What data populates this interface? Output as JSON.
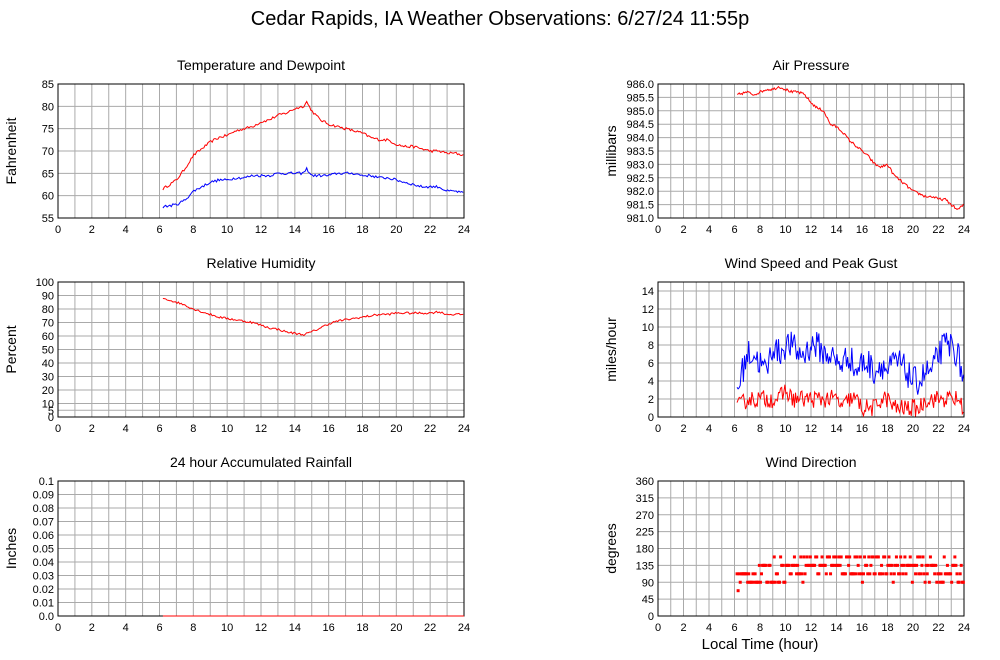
{
  "page": {
    "title": "Cedar Rapids, IA Weather Observations: 6/27/24 11:55p",
    "xlabel": "Local Time (hour)"
  },
  "colors": {
    "temperature": "#ff0000",
    "dewpoint": "#0000ff",
    "grid": "#aaaaaa",
    "frame": "#000000"
  },
  "chart_data": [
    {
      "id": "temp",
      "type": "line",
      "title": "Temperature and Dewpoint",
      "ylabel": "Fahrenheit",
      "xlim": [
        0,
        24
      ],
      "ylim": [
        55,
        85
      ],
      "xticks": [
        0,
        2,
        4,
        6,
        8,
        10,
        12,
        14,
        16,
        18,
        20,
        22,
        24
      ],
      "yticks": [
        55,
        60,
        65,
        70,
        75,
        80,
        85
      ],
      "grid": true,
      "series": [
        {
          "color": "#ff0000",
          "noise": 0.3,
          "x": [
            6.2,
            7.0,
            7.5,
            8.0,
            8.5,
            9.0,
            9.5,
            10.0,
            10.5,
            11.0,
            11.5,
            12.0,
            12.5,
            13.0,
            13.5,
            14.0,
            14.5,
            14.7,
            15.0,
            15.5,
            16.0,
            16.5,
            17.0,
            17.5,
            18.0,
            18.5,
            19.0,
            19.5,
            20.0,
            20.5,
            21.0,
            21.5,
            22.0,
            22.5,
            23.0,
            23.5,
            24.0
          ],
          "y": [
            61.5,
            63.5,
            66,
            69,
            70.5,
            72,
            73,
            73.5,
            74.5,
            75,
            75.5,
            76.5,
            77,
            78,
            78.5,
            79.5,
            80,
            81,
            79,
            77,
            76,
            75.5,
            75,
            74.5,
            74,
            73,
            72.5,
            72.5,
            71.5,
            71,
            71,
            70.5,
            70,
            70,
            69.5,
            69.5,
            69
          ]
        },
        {
          "color": "#0000ff",
          "noise": 0.3,
          "x": [
            6.2,
            7.0,
            7.5,
            8.0,
            8.5,
            9.0,
            9.5,
            10.0,
            10.5,
            11.0,
            11.5,
            12.0,
            12.5,
            13.0,
            13.5,
            14.0,
            14.5,
            14.7,
            15.0,
            15.5,
            16.0,
            16.5,
            17.0,
            17.5,
            18.0,
            18.5,
            19.0,
            19.5,
            20.0,
            20.5,
            21.0,
            21.5,
            22.0,
            22.5,
            23.0,
            23.5,
            24.0
          ],
          "y": [
            57.5,
            58,
            59,
            61,
            62,
            63,
            63.5,
            63.5,
            64,
            64,
            64.5,
            64.5,
            64.5,
            65,
            65,
            65,
            65,
            66,
            64.5,
            64.5,
            64.5,
            65,
            65,
            65,
            64.5,
            64.5,
            64,
            64,
            63.5,
            63,
            62.5,
            62,
            62,
            62,
            61,
            61,
            60.5
          ]
        }
      ]
    },
    {
      "id": "pressure",
      "type": "line",
      "title": "Air Pressure",
      "ylabel": "millibars",
      "xlim": [
        0,
        24
      ],
      "ylim": [
        981,
        986
      ],
      "xticks": [
        0,
        2,
        4,
        6,
        8,
        10,
        12,
        14,
        16,
        18,
        20,
        22,
        24
      ],
      "yticks": [
        981,
        981.5,
        982,
        982.5,
        983,
        983.5,
        984,
        984.5,
        985,
        985.5,
        986
      ],
      "yticklabels": [
        "981.0",
        "981.5",
        "982.0",
        "982.5",
        "983.0",
        "983.5",
        "984.0",
        "984.5",
        "985.0",
        "985.5",
        "986.0"
      ],
      "grid": true,
      "series": [
        {
          "color": "#ff0000",
          "noise": 0.05,
          "x": [
            6.2,
            7.0,
            7.5,
            8.0,
            8.5,
            9.0,
            9.5,
            10.0,
            10.5,
            11.0,
            11.5,
            12.0,
            12.5,
            13.0,
            13.5,
            14.0,
            14.5,
            15.0,
            15.5,
            16.0,
            16.5,
            17.0,
            17.5,
            18.0,
            18.5,
            19.0,
            19.5,
            20.0,
            20.5,
            21.0,
            21.5,
            22.0,
            22.5,
            23.0,
            23.5,
            24.0
          ],
          "y": [
            985.6,
            985.7,
            985.6,
            985.7,
            985.8,
            985.8,
            985.9,
            985.8,
            985.7,
            985.7,
            985.6,
            985.3,
            985.1,
            985.0,
            984.5,
            984.4,
            984.2,
            983.9,
            983.7,
            983.5,
            983.3,
            983.0,
            982.9,
            983.0,
            982.6,
            982.4,
            982.2,
            982.0,
            981.9,
            981.8,
            981.8,
            981.7,
            981.7,
            981.5,
            981.3,
            981.5
          ]
        }
      ]
    },
    {
      "id": "humidity",
      "type": "line",
      "title": "Relative Humidity",
      "ylabel": "Percent",
      "xlim": [
        0,
        24
      ],
      "ylim": [
        0,
        100
      ],
      "xticks": [
        0,
        2,
        4,
        6,
        8,
        10,
        12,
        14,
        16,
        18,
        20,
        22,
        24
      ],
      "yticks": [
        0,
        5,
        10,
        20,
        30,
        40,
        50,
        60,
        70,
        80,
        90,
        100
      ],
      "grid": true,
      "series": [
        {
          "color": "#ff0000",
          "noise": 0.8,
          "x": [
            6.2,
            7.0,
            7.5,
            8.0,
            8.5,
            9.0,
            9.5,
            10.0,
            10.5,
            11.0,
            11.5,
            12.0,
            12.5,
            13.0,
            13.5,
            14.0,
            14.5,
            15.0,
            15.5,
            16.0,
            16.5,
            17.0,
            17.5,
            18.0,
            18.5,
            19.0,
            19.5,
            20.0,
            20.5,
            21.0,
            21.5,
            22.0,
            22.5,
            23.0,
            23.5,
            24.0
          ],
          "y": [
            88,
            85,
            83,
            80,
            78,
            76,
            74,
            73,
            72,
            71,
            70,
            68,
            66,
            65,
            63,
            62,
            61,
            63,
            66,
            69,
            71,
            72,
            73,
            74,
            75,
            76,
            76,
            77,
            77,
            77,
            77,
            77,
            78,
            76,
            76,
            76
          ]
        }
      ]
    },
    {
      "id": "wind",
      "type": "line",
      "title": "Wind Speed and Peak Gust",
      "ylabel": "miles/hour",
      "xlim": [
        0,
        24
      ],
      "ylim": [
        0,
        15
      ],
      "xticks": [
        0,
        2,
        4,
        6,
        8,
        10,
        12,
        14,
        16,
        18,
        20,
        22,
        24
      ],
      "yticks": [
        0,
        2,
        4,
        6,
        8,
        10,
        12,
        14
      ],
      "grid": true,
      "series": [
        {
          "color": "#0000ff",
          "noise": 1.6,
          "x": [
            6.2,
            7.0,
            7.5,
            8.0,
            8.5,
            9.0,
            9.5,
            10.0,
            10.5,
            11.0,
            11.5,
            12.0,
            12.5,
            13.0,
            13.5,
            14.0,
            14.5,
            15.0,
            15.5,
            16.0,
            16.5,
            17.0,
            17.5,
            18.0,
            18.5,
            19.0,
            19.5,
            20.0,
            20.5,
            21.0,
            21.5,
            22.0,
            22.5,
            23.0,
            23.5,
            24.0
          ],
          "y": [
            3,
            7,
            7,
            6,
            5,
            8,
            7,
            8,
            8,
            7,
            7,
            8,
            8,
            7,
            7,
            6,
            6,
            7,
            5,
            6,
            6,
            5,
            6,
            5,
            6,
            6,
            5,
            4,
            4,
            5,
            5,
            7,
            8,
            8,
            7,
            4
          ]
        },
        {
          "color": "#ff0000",
          "noise": 1.0,
          "x": [
            6.2,
            7.0,
            7.5,
            8.0,
            8.5,
            9.0,
            9.5,
            10.0,
            10.5,
            11.0,
            11.5,
            12.0,
            12.5,
            13.0,
            13.5,
            14.0,
            14.5,
            15.0,
            15.5,
            16.0,
            16.5,
            17.0,
            17.5,
            18.0,
            18.5,
            19.0,
            19.5,
            20.0,
            20.5,
            21.0,
            21.5,
            22.0,
            22.5,
            23.0,
            23.5,
            24.0
          ],
          "y": [
            1,
            2,
            2,
            2,
            2,
            2,
            2,
            3,
            2,
            2,
            2,
            2,
            2,
            2,
            2,
            2,
            1,
            2,
            2,
            1,
            1,
            1,
            2,
            2,
            1,
            1,
            1,
            1,
            1,
            2,
            2,
            2,
            2,
            2,
            2,
            1
          ]
        }
      ]
    },
    {
      "id": "rain",
      "type": "line",
      "title": "24 hour Accumulated Rainfall",
      "ylabel": "Inches",
      "xlim": [
        0,
        24
      ],
      "ylim": [
        0,
        0.1
      ],
      "xticks": [
        0,
        2,
        4,
        6,
        8,
        10,
        12,
        14,
        16,
        18,
        20,
        22,
        24
      ],
      "yticks": [
        0,
        0.01,
        0.02,
        0.03,
        0.04,
        0.05,
        0.06,
        0.07,
        0.08,
        0.09,
        0.1
      ],
      "yticklabels": [
        "0.0",
        "0.01",
        "0.02",
        "0.03",
        "0.04",
        "0.05",
        "0.06",
        "0.07",
        "0.08",
        "0.09",
        "0.1"
      ],
      "grid": true,
      "series": [
        {
          "color": "#ff0000",
          "noise": 0,
          "x": [
            6.2,
            24.0
          ],
          "y": [
            0,
            0
          ]
        }
      ]
    },
    {
      "id": "direction",
      "type": "scatter",
      "title": "Wind Direction",
      "ylabel": "degrees",
      "xlim": [
        0,
        24
      ],
      "ylim": [
        0,
        360
      ],
      "xticks": [
        0,
        2,
        4,
        6,
        8,
        10,
        12,
        14,
        16,
        18,
        20,
        22,
        24
      ],
      "yticks": [
        0,
        45,
        90,
        135,
        180,
        225,
        270,
        315,
        360
      ],
      "grid": true,
      "series": [
        {
          "color": "#ff0000",
          "scatter": true,
          "spread": 32,
          "x": [
            6.2,
            7.0,
            7.5,
            8.0,
            8.5,
            9.0,
            9.5,
            10.0,
            10.5,
            11.0,
            11.5,
            12.0,
            12.5,
            13.0,
            13.5,
            14.0,
            14.5,
            15.0,
            15.5,
            16.0,
            16.5,
            17.0,
            17.5,
            18.0,
            18.5,
            19.0,
            19.5,
            20.0,
            20.5,
            21.0,
            21.5,
            22.0,
            22.5,
            23.0,
            23.5,
            24.0
          ],
          "y": [
            90,
            110,
            110,
            100,
            110,
            120,
            125,
            120,
            130,
            135,
            130,
            140,
            140,
            140,
            135,
            135,
            130,
            135,
            135,
            130,
            130,
            135,
            130,
            135,
            130,
            135,
            130,
            125,
            120,
            125,
            120,
            115,
            120,
            120,
            115,
            110
          ]
        }
      ]
    }
  ]
}
